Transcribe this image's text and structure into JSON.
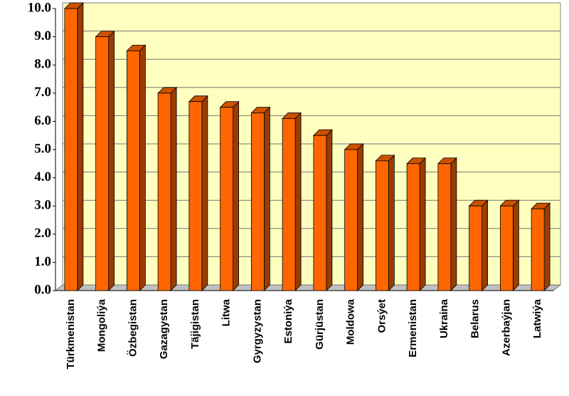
{
  "chart_data": {
    "type": "bar",
    "categories": [
      "Türkmenistan",
      "Mongoliýa",
      "Özbegistan",
      "Gazagystan",
      "Täjigistan",
      "Litwa",
      "Gyrgyzystan",
      "Estoniýa",
      "Gürjüstan",
      "Moldowa",
      "Orsýet",
      "Ermenistan",
      "Ukraina",
      "Belarus",
      "Azerbaýjan",
      "Latwiýa"
    ],
    "values": [
      10.0,
      9.0,
      8.5,
      7.0,
      6.7,
      6.5,
      6.3,
      6.1,
      5.5,
      5.0,
      4.6,
      4.5,
      4.5,
      3.0,
      3.0,
      2.9
    ],
    "color": "#ff6600",
    "ylim": [
      0,
      10
    ],
    "yticks": [
      {
        "value": 0,
        "label": "0.0"
      },
      {
        "value": 1,
        "label": "1.0"
      },
      {
        "value": 2,
        "label": "2.0"
      },
      {
        "value": 3,
        "label": "3.0"
      },
      {
        "value": 4,
        "label": "4.0"
      },
      {
        "value": 5,
        "label": "5.0"
      },
      {
        "value": 6,
        "label": "6.0"
      },
      {
        "value": 7,
        "label": "7.0"
      },
      {
        "value": 8,
        "label": "8.0"
      },
      {
        "value": 9,
        "label": "9.0"
      },
      {
        "value": 10,
        "label": "10.0"
      }
    ],
    "grid": true
  }
}
